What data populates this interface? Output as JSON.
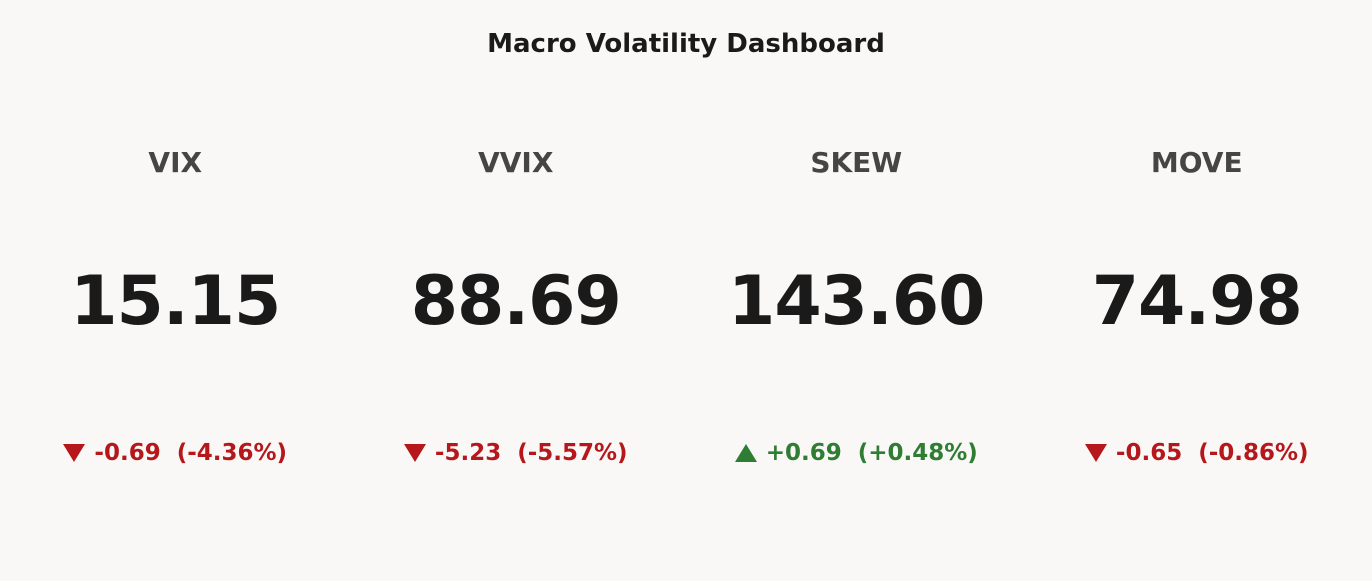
{
  "title": "Macro Volatility Dashboard",
  "up_color": "#2e7d32",
  "down_color": "#b5171b",
  "tiles": [
    {
      "label": "VIX",
      "value": "15.15",
      "delta": "-0.69",
      "delta_pct": "(-4.36%)"
    },
    {
      "label": "VVIX",
      "value": "88.69",
      "delta": "-5.23",
      "delta_pct": "(-5.57%)"
    },
    {
      "label": "SKEW",
      "value": "143.60",
      "delta": "+0.69",
      "delta_pct": "(+0.48%)"
    },
    {
      "label": "MOVE",
      "value": "74.98",
      "delta": "-0.65",
      "delta_pct": "(-0.86%)"
    }
  ]
}
